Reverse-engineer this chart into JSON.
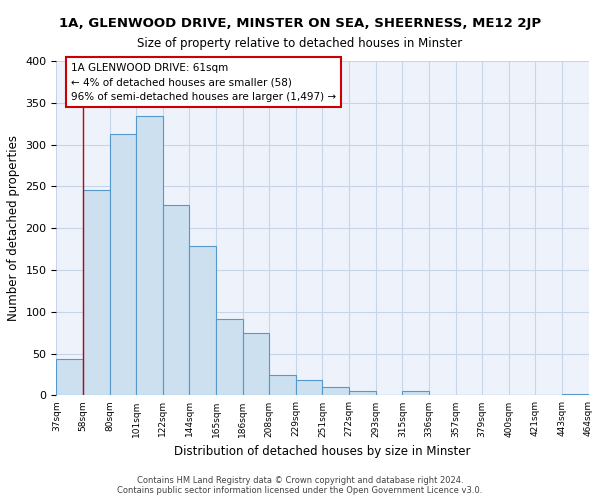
{
  "title": "1A, GLENWOOD DRIVE, MINSTER ON SEA, SHEERNESS, ME12 2JP",
  "subtitle": "Size of property relative to detached houses in Minster",
  "xlabel": "Distribution of detached houses by size in Minster",
  "ylabel": "Number of detached properties",
  "bar_values": [
    44,
    246,
    313,
    334,
    228,
    179,
    91,
    75,
    25,
    18,
    10,
    5,
    0,
    5,
    0,
    0,
    0,
    0,
    0,
    2
  ],
  "bin_labels": [
    "37sqm",
    "58sqm",
    "80sqm",
    "101sqm",
    "122sqm",
    "144sqm",
    "165sqm",
    "186sqm",
    "208sqm",
    "229sqm",
    "251sqm",
    "272sqm",
    "293sqm",
    "315sqm",
    "336sqm",
    "357sqm",
    "379sqm",
    "400sqm",
    "421sqm",
    "443sqm",
    "464sqm"
  ],
  "bar_color": "#cce0f0",
  "bar_edge_color": "#5599cc",
  "ylim": [
    0,
    400
  ],
  "yticks": [
    0,
    50,
    100,
    150,
    200,
    250,
    300,
    350,
    400
  ],
  "vline_x": 1,
  "vline_color": "#cc0000",
  "annotation_title": "1A GLENWOOD DRIVE: 61sqm",
  "annotation_line1": "← 4% of detached houses are smaller (58)",
  "annotation_line2": "96% of semi-detached houses are larger (1,497) →",
  "footer1": "Contains HM Land Registry data © Crown copyright and database right 2024.",
  "footer2": "Contains public sector information licensed under the Open Government Licence v3.0.",
  "bg_color": "#eef2fb",
  "grid_color": "#c8d4e8"
}
